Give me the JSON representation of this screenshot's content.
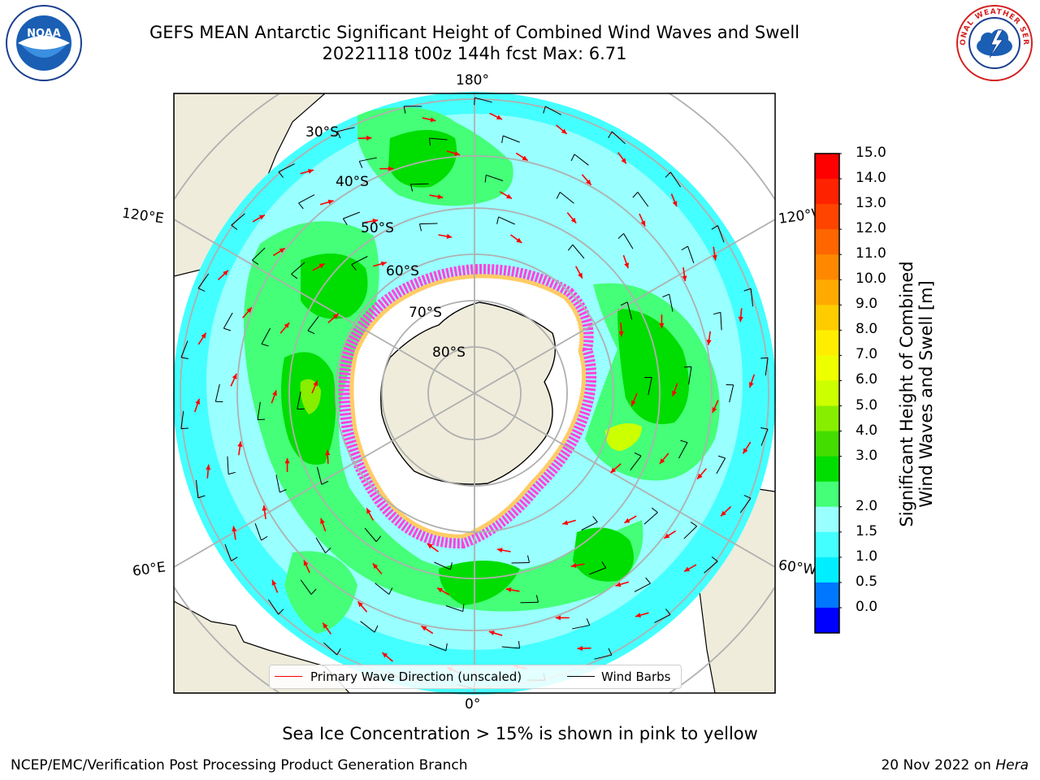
{
  "title_line1": "GEFS MEAN Antarctic Significant Height of Combined Wind Waves and Swell",
  "title_line2": "20221118 t00z 144h fcst   Max: 6.71",
  "logos": {
    "left": {
      "icon": "noaa-logo",
      "text": "NOAA"
    },
    "right": {
      "icon": "national-weather-service-logo",
      "text": "NATIONAL WEATHER SERVICE"
    }
  },
  "map": {
    "longitude_labels": {
      "top": "180°",
      "bottom": "0°",
      "upper_left": "120°E",
      "upper_right": "120°W",
      "lower_left": "60°E",
      "lower_right": "60°W"
    },
    "latitude_labels": [
      "30°S",
      "40°S",
      "50°S",
      "60°S",
      "70°S",
      "80°S"
    ]
  },
  "legend": {
    "wave": {
      "label": "Primary Wave Direction (unscaled)",
      "color": "#ff0000"
    },
    "wind": {
      "label": "Wind Barbs",
      "color": "#000000"
    }
  },
  "colorbar": {
    "label_line1": "Significant Height of Combined",
    "label_line2": "Wind Waves and Swell [m]",
    "ticks": [
      "15.0",
      "14.0",
      "13.0",
      "12.0",
      "11.0",
      "10.0",
      "9.0",
      "8.0",
      "7.0",
      "6.0",
      "5.0",
      "4.0",
      "3.0",
      "2.0",
      "1.5",
      "1.0",
      "0.5",
      "0.0"
    ],
    "colors_top_to_bottom": [
      "#ff0000",
      "#ff2200",
      "#ff4400",
      "#ff6600",
      "#ff8800",
      "#ffaa00",
      "#ffcc00",
      "#ffee00",
      "#eeff00",
      "#ccff00",
      "#88ee00",
      "#44dd00",
      "#00dd00",
      "#44ff77",
      "#99ffff",
      "#44ffff",
      "#00eeff",
      "#0077ff",
      "#0000ff"
    ]
  },
  "colors": {
    "land": "#efecdb",
    "ocean_low": "#99ffff",
    "ocean_mid": "#44ffff",
    "wave_green": "#44ff77",
    "wave_bright_green": "#00dd00",
    "ice_pink": "#ff44dd",
    "ice_orange": "#ffcc66",
    "grid": "#b0b0b0"
  },
  "subcaption": "Sea Ice Concentration > 15% is shown in pink to yellow",
  "footer": {
    "left": "NCEP/EMC/Verification Post Processing Product Generation Branch",
    "right_prefix": "20 Nov 2022 on",
    "right_host": "Hera"
  }
}
